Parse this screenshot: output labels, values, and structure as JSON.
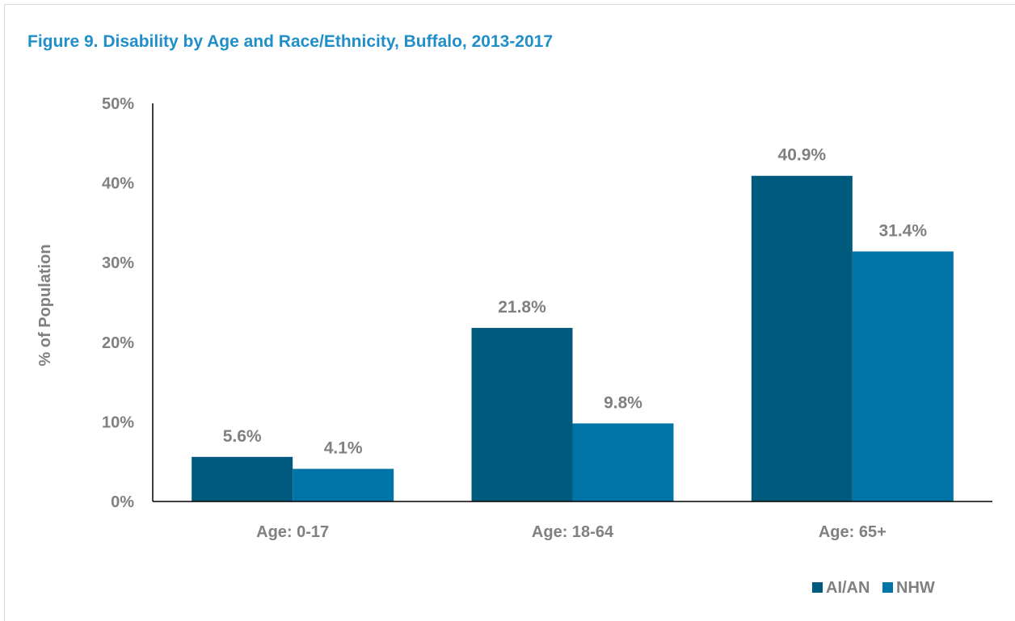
{
  "title": "Figure 9. Disability by Age and Race/Ethnicity, Buffalo, 2013-2017",
  "colors": {
    "AI/AN": "#005a7d",
    "NHW": "#0074a6",
    "text": "#808080",
    "title": "#1f8ec9"
  },
  "chart_data": {
    "type": "bar",
    "title": "Figure 9. Disability by Age and Race/Ethnicity, Buffalo, 2013-2017",
    "categories": [
      "Age: 0-17",
      "Age: 18-64",
      "Age: 65+"
    ],
    "series": [
      {
        "name": "AI/AN",
        "values": [
          5.6,
          21.8,
          40.9
        ],
        "labels": [
          "5.6%",
          "21.8%",
          "40.9%"
        ]
      },
      {
        "name": "NHW",
        "values": [
          4.1,
          9.8,
          31.4
        ],
        "labels": [
          "4.1%",
          "9.8%",
          "31.4%"
        ]
      }
    ],
    "xlabel": "",
    "ylabel": "% of Population",
    "ylim": [
      0,
      50
    ],
    "yticks": [
      "0%",
      "10%",
      "20%",
      "30%",
      "40%",
      "50%"
    ],
    "grid": false,
    "legend": "bottom-right"
  }
}
